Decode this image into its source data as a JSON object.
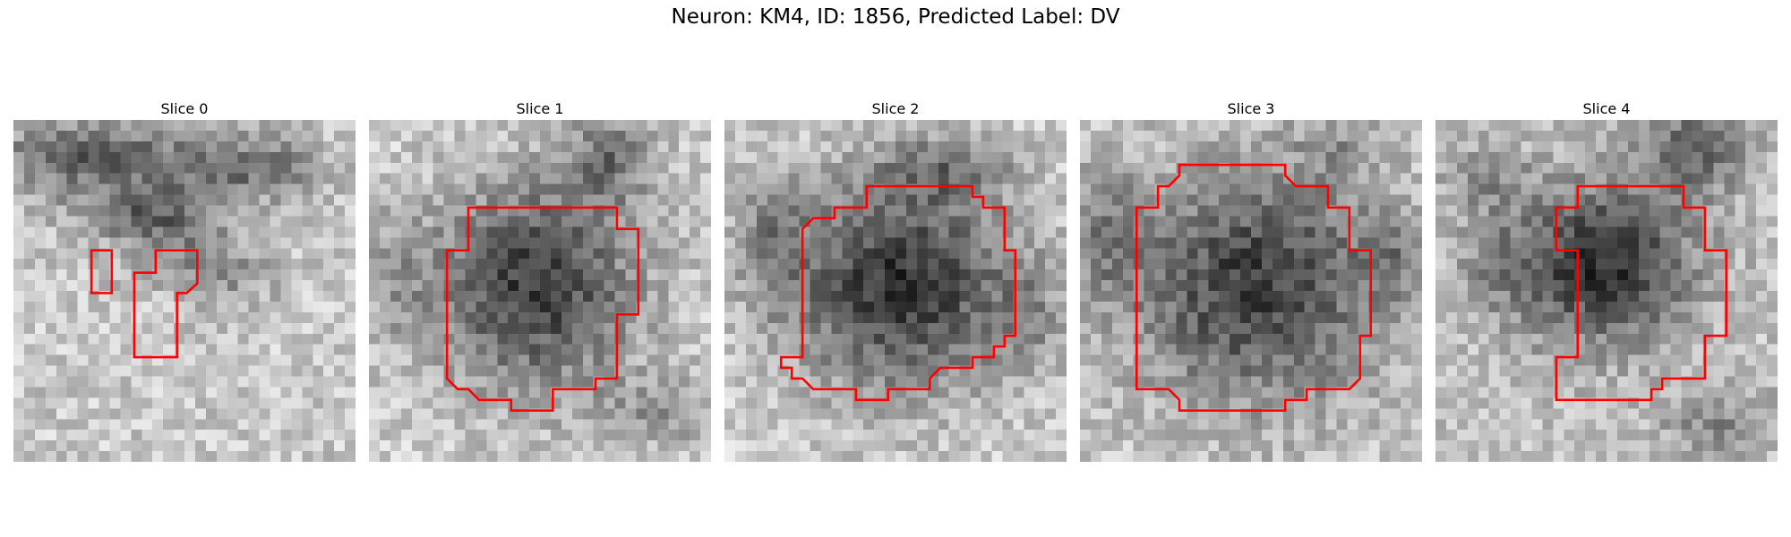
{
  "figure": {
    "title": "Neuron: KM4, ID: 1856, Predicted Label: DV"
  },
  "colors": {
    "contour": "#ff0000",
    "dark_cell": "#2a2a2a",
    "light_bg": "#e8e8e8"
  },
  "panels": [
    {
      "title": "Slice 0"
    },
    {
      "title": "Slice 1"
    },
    {
      "title": "Slice 2"
    },
    {
      "title": "Slice 3"
    },
    {
      "title": "Slice 4"
    }
  ]
}
